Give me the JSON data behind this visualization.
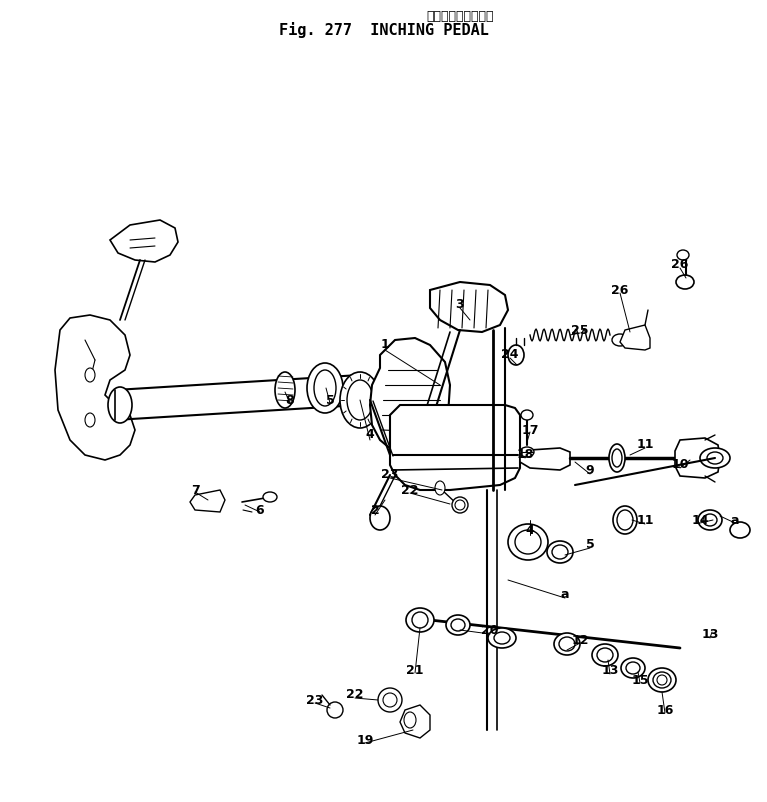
{
  "title_jp": "インチング　ペダル",
  "title_en": "Fig. 277  INCHING PEDAL",
  "bg_color": "#ffffff",
  "fig_width": 7.67,
  "fig_height": 8.02,
  "dpi": 100,
  "labels": [
    [
      "1",
      385,
      345
    ],
    [
      "2",
      375,
      510
    ],
    [
      "3",
      460,
      305
    ],
    [
      "4",
      370,
      435
    ],
    [
      "4",
      530,
      530
    ],
    [
      "5",
      330,
      400
    ],
    [
      "5",
      590,
      545
    ],
    [
      "6",
      260,
      510
    ],
    [
      "7",
      195,
      490
    ],
    [
      "8",
      290,
      400
    ],
    [
      "9",
      590,
      470
    ],
    [
      "10",
      680,
      465
    ],
    [
      "11",
      645,
      445
    ],
    [
      "11",
      645,
      520
    ],
    [
      "12",
      580,
      640
    ],
    [
      "13",
      610,
      670
    ],
    [
      "13",
      710,
      635
    ],
    [
      "14",
      700,
      520
    ],
    [
      "15",
      640,
      680
    ],
    [
      "16",
      665,
      710
    ],
    [
      "17",
      530,
      430
    ],
    [
      "18",
      525,
      455
    ],
    [
      "19",
      365,
      740
    ],
    [
      "20",
      490,
      630
    ],
    [
      "21",
      415,
      670
    ],
    [
      "22",
      410,
      490
    ],
    [
      "22",
      355,
      695
    ],
    [
      "23",
      390,
      475
    ],
    [
      "23",
      315,
      700
    ],
    [
      "24",
      510,
      355
    ],
    [
      "25",
      580,
      330
    ],
    [
      "26",
      620,
      290
    ],
    [
      "26",
      680,
      265
    ],
    [
      "a",
      735,
      520
    ],
    [
      "a",
      565,
      595
    ]
  ]
}
